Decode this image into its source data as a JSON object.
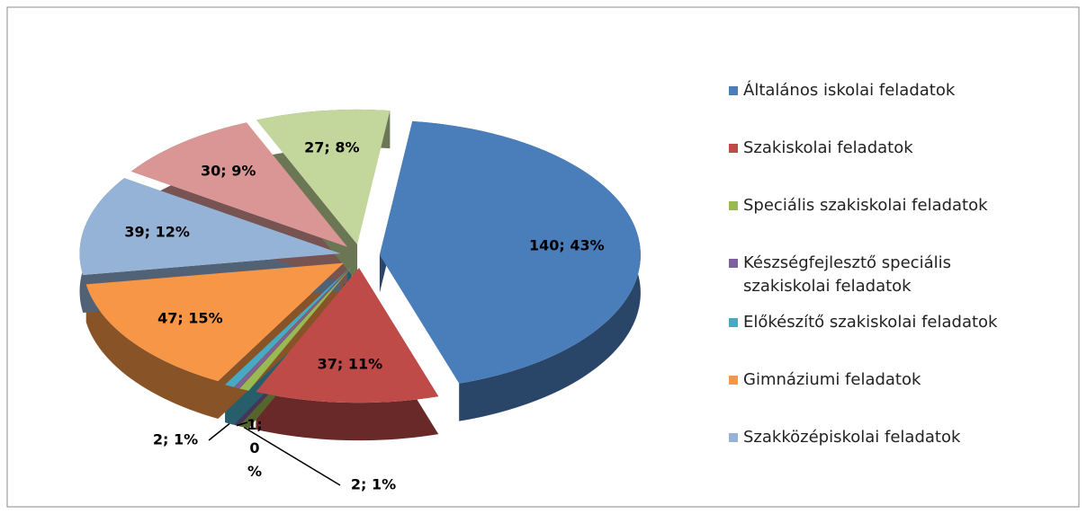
{
  "chart_data": {
    "type": "pie3d",
    "categories": [
      "Általános iskolai feladatok",
      "Szakiskolai feladatok",
      "Speciális szakiskolai feladatok",
      "Készségfejlesztő speciális szakiskolai feladatok",
      "Előkészítő szakiskolai feladatok",
      "Gimnáziumi feladatok",
      "Szakközépiskolai feladatok",
      null,
      null
    ],
    "values": [
      140,
      37,
      2,
      1,
      2,
      47,
      39,
      30,
      27
    ],
    "value_labels": [
      "140; 43%",
      "37; 11%",
      "2; 1%",
      "1; 0 %",
      "2; 1%",
      "47; 15%",
      "39; 12%",
      "30; 9%",
      "27; 8%"
    ],
    "colors": [
      "#4a7ebb",
      "#be4b48",
      "#98b954",
      "#7d60a0",
      "#46aac5",
      "#f79646",
      "#95b3d7",
      "#d99694",
      "#c3d69b"
    ],
    "legend": "right"
  }
}
